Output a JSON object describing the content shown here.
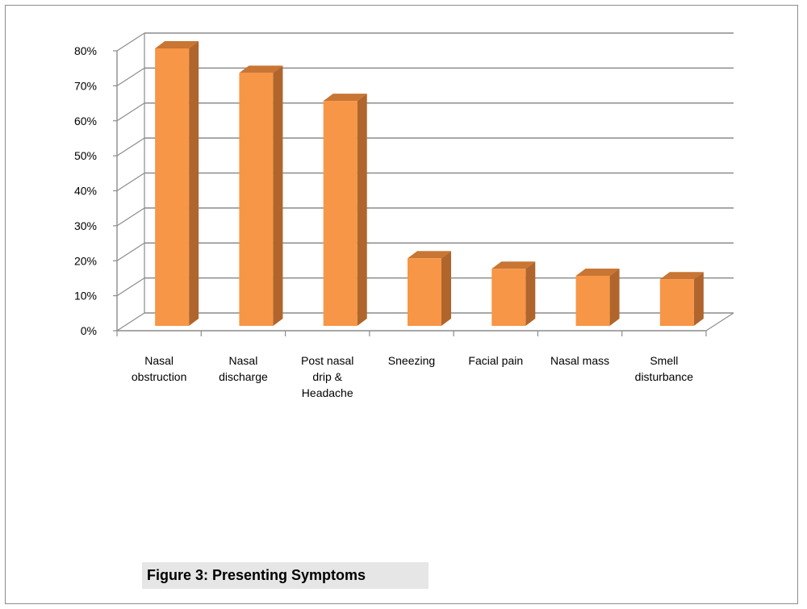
{
  "caption": "Figure 3: Presenting Symptoms",
  "colors": {
    "bar_front": "#F79646",
    "bar_side": "#B0652C",
    "bar_top": "#C97533",
    "grid": "#8c8c8c",
    "frame": "#8c8c8c"
  },
  "chart_data": {
    "type": "bar",
    "categories": [
      [
        "Nasal",
        "obstruction"
      ],
      [
        "Nasal",
        "discharge"
      ],
      [
        "Post nasal",
        "drip &",
        "Headache"
      ],
      [
        "Sneezing"
      ],
      [
        "Facial pain"
      ],
      [
        "Nasal mass"
      ],
      [
        "Smell",
        "disturbance"
      ]
    ],
    "values": [
      80,
      73,
      65,
      20,
      17,
      15,
      14
    ],
    "y_ticks": [
      "0%",
      "10%",
      "20%",
      "30%",
      "40%",
      "50%",
      "60%",
      "70%",
      "80%"
    ],
    "ylim": [
      0,
      80
    ],
    "y_unit": "%",
    "grid": true,
    "style": "3d-column",
    "title": "",
    "xlabel": "",
    "ylabel": ""
  }
}
